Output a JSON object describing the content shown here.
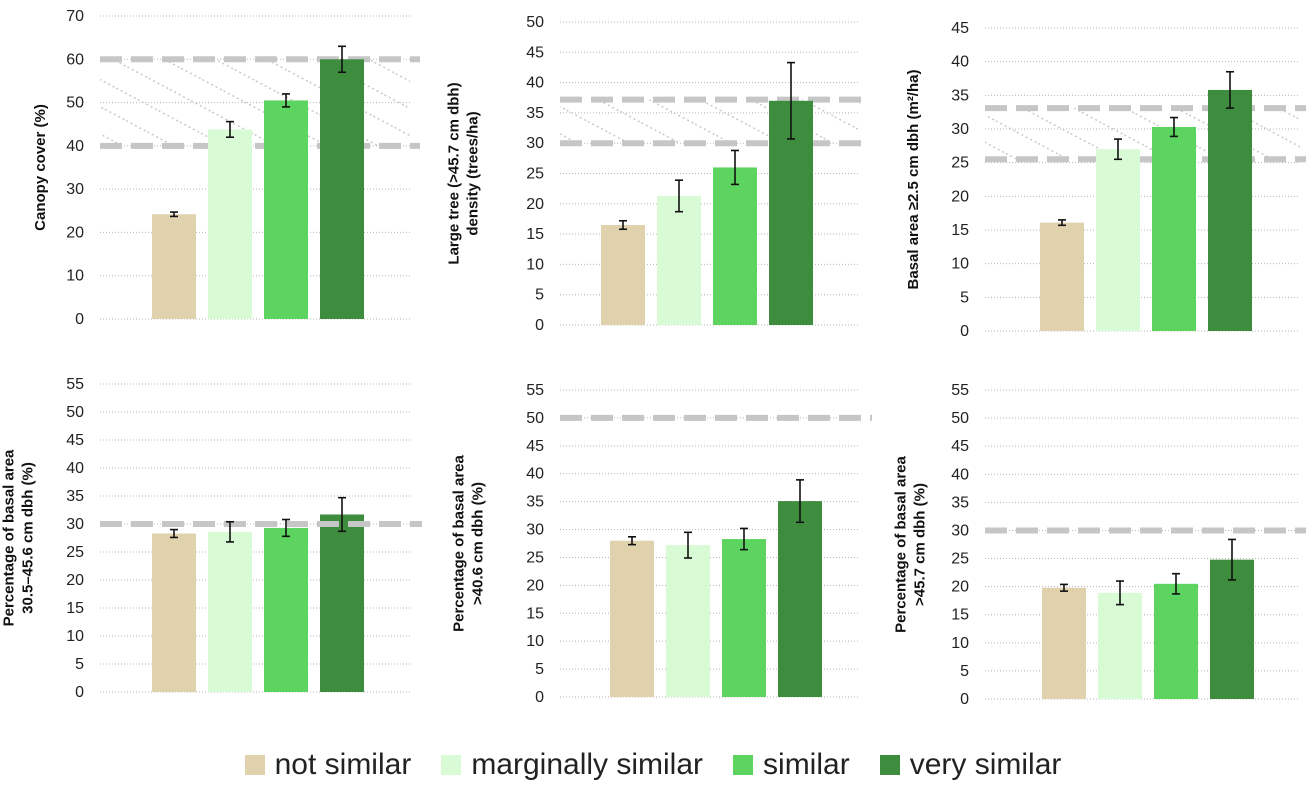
{
  "colors": {
    "not_similar": "#dfd2ad",
    "marginally_similar": "#d8fad5",
    "similar": "#5ed460",
    "very_similar": "#3e8d3f",
    "grid": "#b7b7b7",
    "reference": "#c6c6c6"
  },
  "legend": [
    {
      "label": "not similar",
      "color_key": "not_similar"
    },
    {
      "label": "marginally similar",
      "color_key": "marginally_similar"
    },
    {
      "label": "similar",
      "color_key": "similar"
    },
    {
      "label": "very similar",
      "color_key": "very_similar"
    }
  ],
  "chart_data": [
    {
      "type": "bar",
      "ylabel": [
        "Canopy cover (%)"
      ],
      "ylim": [
        0,
        70
      ],
      "tick_step": 10,
      "grid": true,
      "categories": [
        "not similar",
        "marginally similar",
        "similar",
        "very similar"
      ],
      "values": [
        24.2,
        43.8,
        50.5,
        60.0
      ],
      "errors": [
        0.5,
        1.8,
        1.5,
        3.0
      ],
      "reference_range": [
        40,
        60
      ]
    },
    {
      "type": "bar",
      "ylabel": [
        "Large tree (>45.7 cm dbh)",
        "density (trees/ha)"
      ],
      "ylim": [
        0,
        50
      ],
      "tick_step": 5,
      "grid": true,
      "categories": [
        "not similar",
        "marginally similar",
        "similar",
        "very similar"
      ],
      "values": [
        16.5,
        21.3,
        26.0,
        37.0
      ],
      "errors": [
        0.7,
        2.6,
        2.8,
        6.3
      ],
      "reference_range": [
        30,
        37.2
      ]
    },
    {
      "type": "bar",
      "ylabel": [
        "Basal area ≥2.5 cm dbh (m²/ha)"
      ],
      "ylim": [
        0,
        45
      ],
      "tick_step": 5,
      "grid": true,
      "categories": [
        "not similar",
        "marginally similar",
        "similar",
        "very similar"
      ],
      "values": [
        16.1,
        27.0,
        30.3,
        35.8
      ],
      "errors": [
        0.4,
        1.5,
        1.4,
        2.7
      ],
      "reference_range": [
        25.5,
        33.1
      ]
    },
    {
      "type": "bar",
      "ylabel": [
        "Percentage of basal area",
        "30.5–45.6 cm dbh (%)"
      ],
      "ylim": [
        0,
        55
      ],
      "tick_step": 5,
      "grid": true,
      "categories": [
        "not similar",
        "marginally similar",
        "similar",
        "very similar"
      ],
      "values": [
        28.3,
        28.6,
        29.3,
        31.7
      ],
      "errors": [
        0.7,
        1.8,
        1.5,
        3.0
      ],
      "reference_line": 30
    },
    {
      "type": "bar",
      "ylabel": [
        "Percentage of basal area",
        ">40.6 cm dbh (%)"
      ],
      "ylim": [
        0,
        55
      ],
      "tick_step": 5,
      "grid": true,
      "categories": [
        "not similar",
        "marginally similar",
        "similar",
        "very similar"
      ],
      "values": [
        28.0,
        27.2,
        28.3,
        35.1
      ],
      "errors": [
        0.7,
        2.3,
        1.9,
        3.8
      ],
      "reference_line": 50
    },
    {
      "type": "bar",
      "ylabel": [
        "Percentage of basal area",
        ">45.7 cm dbh (%)"
      ],
      "ylim": [
        0,
        55
      ],
      "tick_step": 5,
      "grid": true,
      "categories": [
        "not similar",
        "marginally similar",
        "similar",
        "very similar"
      ],
      "values": [
        19.8,
        18.9,
        20.5,
        24.8
      ],
      "errors": [
        0.6,
        2.1,
        1.8,
        3.6
      ],
      "reference_line": 30
    }
  ]
}
